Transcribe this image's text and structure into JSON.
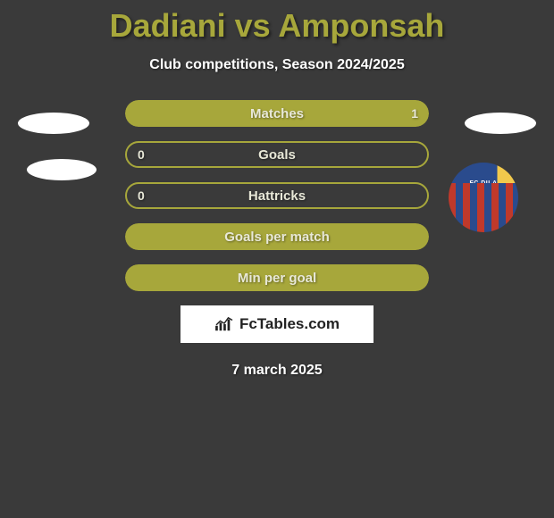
{
  "title": {
    "text": "Dadiani vs Amponsah",
    "color": "#a7a73b"
  },
  "subtitle": "Club competitions, Season 2024/2025",
  "colors": {
    "bar_fill": "#a7a73b",
    "bar_border": "#a7a73b",
    "bg": "#3a3a3a",
    "text_light": "#e8e8d8",
    "text_white": "#ffffff"
  },
  "stats": [
    {
      "label": "Matches",
      "left_val": "",
      "right_val": "1",
      "left_pct": 0,
      "right_pct": 100,
      "fill": "right"
    },
    {
      "label": "Goals",
      "left_val": "0",
      "right_val": "",
      "left_pct": 0,
      "right_pct": 0,
      "fill": "border"
    },
    {
      "label": "Hattricks",
      "left_val": "0",
      "right_val": "",
      "left_pct": 0,
      "right_pct": 0,
      "fill": "border"
    },
    {
      "label": "Goals per match",
      "left_val": "",
      "right_val": "",
      "left_pct": 100,
      "right_pct": 100,
      "fill": "full"
    },
    {
      "label": "Min per goal",
      "left_val": "",
      "right_val": "",
      "left_pct": 100,
      "right_pct": 100,
      "fill": "full"
    }
  ],
  "logo": "FcTables.com",
  "date": "7 march 2025",
  "badge_text": "FC DILA"
}
